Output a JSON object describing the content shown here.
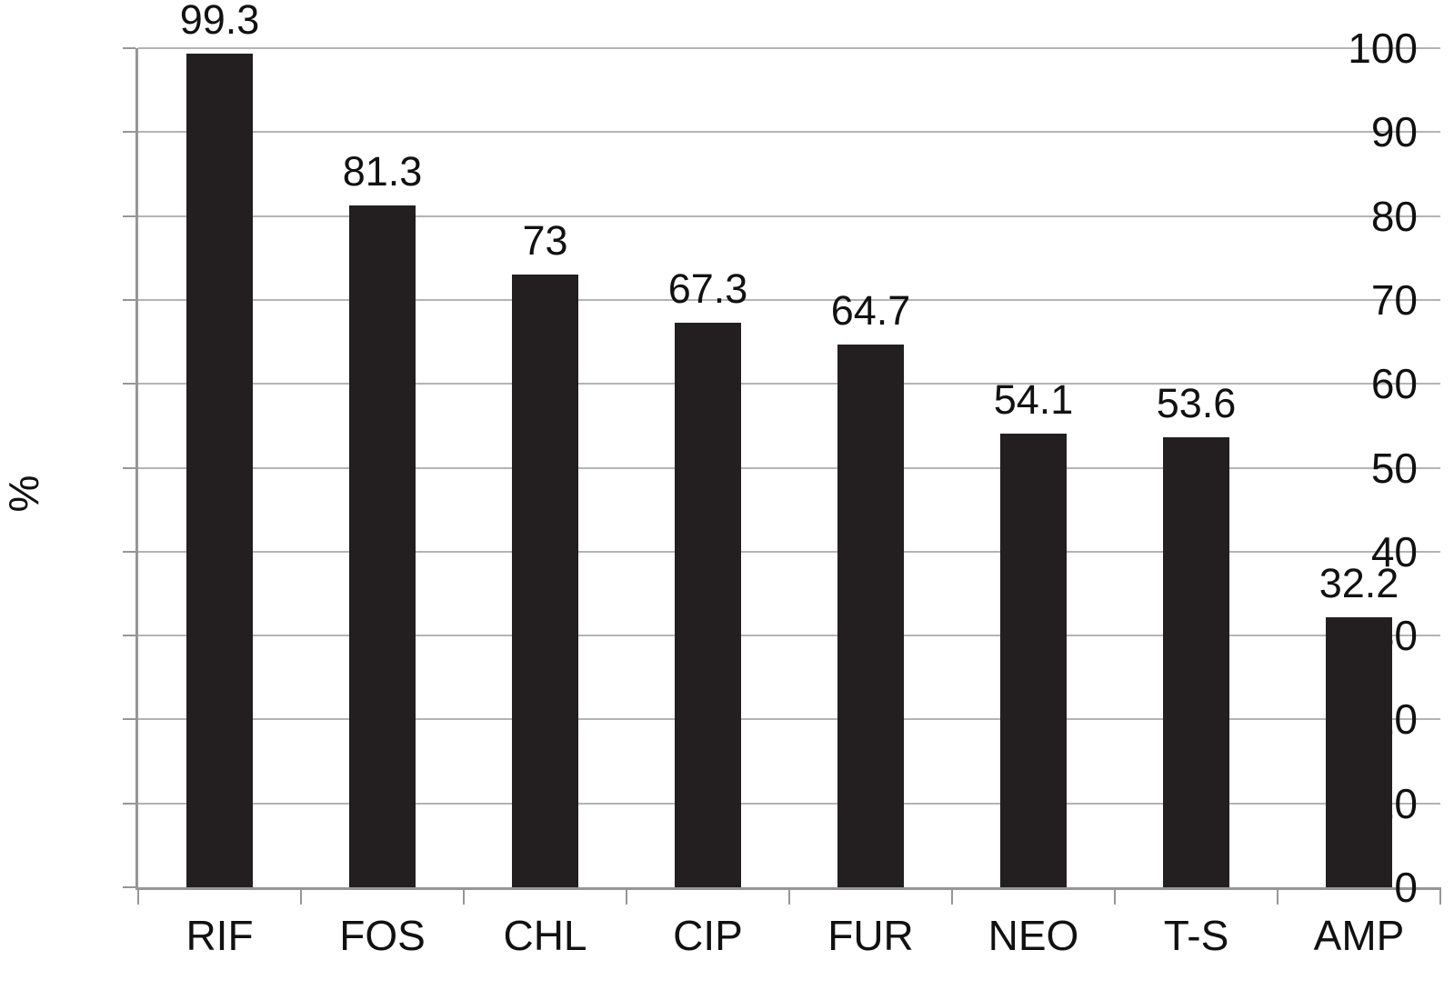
{
  "chart_data": {
    "type": "bar",
    "title": "",
    "categories": [
      "RIF",
      "FOS",
      "CHL",
      "CIP",
      "FUR",
      "NEO",
      "T-S",
      "AMP"
    ],
    "values": [
      99.3,
      81.3,
      73,
      67.3,
      64.7,
      54.1,
      53.6,
      32.2
    ],
    "value_labels": [
      "99.3",
      "81.3",
      "73",
      "67.3",
      "64.7",
      "54.1",
      "53.6",
      "32.2"
    ],
    "xlabel": "",
    "ylabel": "%",
    "ylim": [
      0,
      100
    ],
    "yticks": [
      0,
      10,
      20,
      30,
      40,
      50,
      60,
      70,
      80,
      90,
      100
    ],
    "grid": "horizontal",
    "legend_position": "none",
    "colors": {
      "bar": "#231f20",
      "gridline": "#b4b4b4",
      "axis": "#969696",
      "text": "#111111",
      "background": "#ffffff"
    }
  }
}
